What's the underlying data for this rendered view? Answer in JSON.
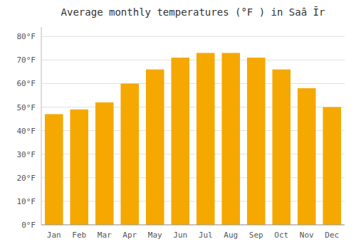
{
  "chart_data": {
    "type": "bar",
    "title": "Average monthly temperatures (°F ) in Saâ Īr",
    "categories": [
      "Jan",
      "Feb",
      "Mar",
      "Apr",
      "May",
      "Jun",
      "Jul",
      "Aug",
      "Sep",
      "Oct",
      "Nov",
      "Dec"
    ],
    "values": [
      47,
      49,
      52,
      60,
      66,
      71,
      73,
      73,
      71,
      66,
      58,
      50
    ],
    "color": "#F5A800",
    "ylim": [
      0,
      84
    ],
    "yticks": [
      {
        "value": 0,
        "label": "0°F"
      },
      {
        "value": 10,
        "label": "10°F"
      },
      {
        "value": 20,
        "label": "20°F"
      },
      {
        "value": 30,
        "label": "30°F"
      },
      {
        "value": 40,
        "label": "40°F"
      },
      {
        "value": 50,
        "label": "50°F"
      },
      {
        "value": 60,
        "label": "60°F"
      },
      {
        "value": 70,
        "label": "70°F"
      },
      {
        "value": 80,
        "label": "80°F"
      }
    ],
    "grid": true
  }
}
